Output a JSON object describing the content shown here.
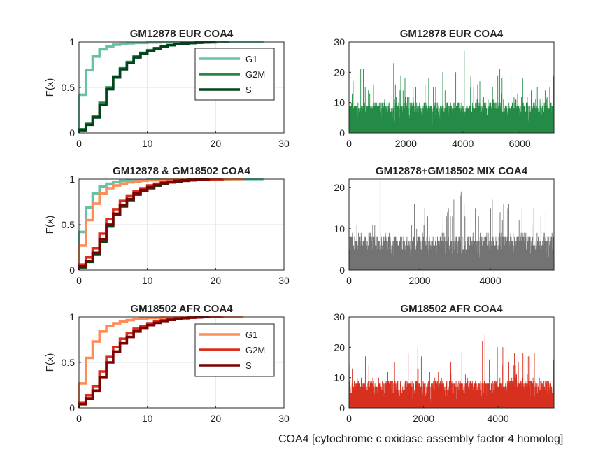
{
  "window": {
    "title": ""
  },
  "xlabel_bottom": "COA4 [cytochrome c oxidase assembly factor 4 homolog]",
  "chart_data": [
    {
      "id": "cdf-eur",
      "type": "line",
      "title": "GM12878 EUR COA4",
      "ylabel": "F(x)",
      "xlim": [
        0,
        30
      ],
      "ylim": [
        0,
        1
      ],
      "xticks": [
        0,
        10,
        20,
        30
      ],
      "yticks": [
        0,
        0.5,
        1
      ],
      "grid": true,
      "legend": {
        "position": "top-right",
        "entries": [
          "G1",
          "G2M",
          "S"
        ]
      },
      "series": [
        {
          "name": "G1",
          "color": "#66c2a4",
          "x": [
            0,
            1,
            2,
            3,
            4,
            5,
            6,
            7,
            8,
            10,
            12,
            15,
            27
          ],
          "y": [
            0.42,
            0.69,
            0.84,
            0.92,
            0.95,
            0.97,
            0.98,
            0.985,
            0.99,
            0.995,
            0.998,
            1.0,
            1.0
          ]
        },
        {
          "name": "G2M",
          "color": "#238b45",
          "x": [
            0,
            1,
            2,
            3,
            4,
            5,
            6,
            7,
            8,
            9,
            10,
            11,
            12,
            13,
            14,
            15,
            16,
            17,
            18,
            20,
            22
          ],
          "y": [
            0.04,
            0.1,
            0.18,
            0.33,
            0.5,
            0.62,
            0.71,
            0.78,
            0.84,
            0.88,
            0.91,
            0.93,
            0.95,
            0.965,
            0.975,
            0.982,
            0.988,
            0.992,
            0.996,
            1.0,
            1.0
          ]
        },
        {
          "name": "S",
          "color": "#00441b",
          "x": [
            0,
            1,
            2,
            3,
            4,
            5,
            6,
            7,
            8,
            9,
            10,
            11,
            12,
            13,
            14,
            15,
            16,
            17,
            18,
            19,
            20
          ],
          "y": [
            0.03,
            0.09,
            0.17,
            0.31,
            0.48,
            0.61,
            0.7,
            0.77,
            0.83,
            0.87,
            0.9,
            0.93,
            0.95,
            0.965,
            0.975,
            0.982,
            0.988,
            0.993,
            0.996,
            1.0,
            1.0
          ]
        }
      ]
    },
    {
      "id": "hist-eur",
      "type": "bar",
      "title": "GM12878 EUR COA4",
      "xlim": [
        0,
        7200
      ],
      "ylim": [
        0,
        30
      ],
      "xticks": [
        0,
        2000,
        4000,
        6000
      ],
      "yticks": [
        0,
        10,
        20,
        30
      ],
      "color": "#238b45",
      "n": 7200,
      "typical_max": 10,
      "peak_max": 27,
      "peak_at": 4050
    },
    {
      "id": "cdf-mix",
      "type": "line",
      "title": "GM12878 & GM18502 COA4",
      "ylabel": "F(x)",
      "xlim": [
        0,
        30
      ],
      "ylim": [
        0,
        1
      ],
      "xticks": [
        0,
        10,
        20,
        30
      ],
      "yticks": [
        0,
        0.5,
        1
      ],
      "grid": true,
      "series": [
        {
          "color": "#66c2a4",
          "x": [
            0,
            1,
            2,
            3,
            4,
            5,
            6,
            7,
            8,
            10,
            12,
            15,
            27
          ],
          "y": [
            0.42,
            0.69,
            0.84,
            0.92,
            0.95,
            0.97,
            0.98,
            0.985,
            0.99,
            0.995,
            0.998,
            1.0,
            1.0
          ]
        },
        {
          "color": "#238b45",
          "x": [
            0,
            1,
            2,
            3,
            4,
            5,
            6,
            7,
            8,
            9,
            10,
            11,
            12,
            13,
            14,
            15,
            16,
            17,
            18,
            20,
            22
          ],
          "y": [
            0.04,
            0.1,
            0.18,
            0.33,
            0.5,
            0.62,
            0.71,
            0.78,
            0.84,
            0.88,
            0.91,
            0.93,
            0.95,
            0.965,
            0.975,
            0.982,
            0.988,
            0.992,
            0.996,
            1.0,
            1.0
          ]
        },
        {
          "color": "#00441b",
          "x": [
            0,
            1,
            2,
            3,
            4,
            5,
            6,
            7,
            8,
            9,
            10,
            11,
            12,
            13,
            14,
            15,
            16,
            17,
            18,
            19,
            20
          ],
          "y": [
            0.03,
            0.09,
            0.17,
            0.31,
            0.48,
            0.61,
            0.7,
            0.77,
            0.83,
            0.87,
            0.9,
            0.93,
            0.95,
            0.965,
            0.975,
            0.982,
            0.988,
            0.993,
            0.996,
            1.0,
            1.0
          ]
        },
        {
          "color": "#fc8d59",
          "x": [
            0,
            1,
            2,
            3,
            4,
            5,
            6,
            7,
            8,
            9,
            10,
            12,
            14,
            16,
            18,
            20,
            24
          ],
          "y": [
            0.27,
            0.55,
            0.73,
            0.84,
            0.9,
            0.93,
            0.95,
            0.965,
            0.975,
            0.982,
            0.988,
            0.993,
            0.996,
            0.998,
            0.999,
            1.0,
            1.0
          ]
        },
        {
          "color": "#d7301f",
          "x": [
            0,
            1,
            2,
            3,
            4,
            5,
            6,
            7,
            8,
            9,
            10,
            11,
            12,
            13,
            14,
            15,
            16,
            18,
            21
          ],
          "y": [
            0.06,
            0.14,
            0.24,
            0.4,
            0.56,
            0.67,
            0.76,
            0.82,
            0.87,
            0.9,
            0.93,
            0.95,
            0.965,
            0.975,
            0.984,
            0.99,
            0.995,
            0.998,
            1.0
          ]
        },
        {
          "color": "#7f0000",
          "x": [
            0,
            1,
            2,
            3,
            4,
            5,
            6,
            7,
            8,
            9,
            10,
            11,
            12,
            13,
            14,
            15,
            16,
            17,
            18,
            19
          ],
          "y": [
            0.04,
            0.1,
            0.19,
            0.34,
            0.5,
            0.62,
            0.71,
            0.78,
            0.84,
            0.88,
            0.91,
            0.935,
            0.955,
            0.968,
            0.978,
            0.986,
            0.992,
            0.996,
            0.999,
            1.0
          ]
        }
      ]
    },
    {
      "id": "hist-mix",
      "type": "bar",
      "title": "GM12878+GM18502 MIX COA4",
      "xlim": [
        0,
        5800
      ],
      "ylim": [
        0,
        22
      ],
      "xticks": [
        0,
        2000,
        4000
      ],
      "yticks": [
        0,
        10,
        20
      ],
      "color": "#737373",
      "n": 5800,
      "typical_max": 8,
      "peak_max": 22,
      "peak_at": 880
    },
    {
      "id": "cdf-afr",
      "type": "line",
      "title": "GM18502 AFR COA4",
      "ylabel": "F(x)",
      "xlim": [
        0,
        30
      ],
      "ylim": [
        0,
        1
      ],
      "xticks": [
        0,
        10,
        20,
        30
      ],
      "yticks": [
        0,
        0.5,
        1
      ],
      "grid": true,
      "legend": {
        "position": "top-right",
        "entries": [
          "G1",
          "G2M",
          "S"
        ]
      },
      "series": [
        {
          "name": "G1",
          "color": "#fc8d59",
          "x": [
            0,
            1,
            2,
            3,
            4,
            5,
            6,
            7,
            8,
            9,
            10,
            12,
            14,
            16,
            18,
            20,
            24
          ],
          "y": [
            0.27,
            0.55,
            0.73,
            0.84,
            0.9,
            0.93,
            0.95,
            0.965,
            0.975,
            0.982,
            0.988,
            0.993,
            0.996,
            0.998,
            0.999,
            1.0,
            1.0
          ]
        },
        {
          "name": "G2M",
          "color": "#d7301f",
          "x": [
            0,
            1,
            2,
            3,
            4,
            5,
            6,
            7,
            8,
            9,
            10,
            11,
            12,
            13,
            14,
            15,
            16,
            18,
            21
          ],
          "y": [
            0.06,
            0.14,
            0.24,
            0.4,
            0.56,
            0.67,
            0.76,
            0.82,
            0.87,
            0.9,
            0.93,
            0.95,
            0.965,
            0.975,
            0.984,
            0.99,
            0.995,
            0.998,
            1.0
          ]
        },
        {
          "name": "S",
          "color": "#7f0000",
          "x": [
            0,
            1,
            2,
            3,
            4,
            5,
            6,
            7,
            8,
            9,
            10,
            11,
            12,
            13,
            14,
            15,
            16,
            17,
            18,
            19
          ],
          "y": [
            0.04,
            0.1,
            0.19,
            0.34,
            0.5,
            0.62,
            0.71,
            0.78,
            0.84,
            0.88,
            0.91,
            0.935,
            0.955,
            0.968,
            0.978,
            0.986,
            0.992,
            0.996,
            0.999,
            1.0
          ]
        }
      ]
    },
    {
      "id": "hist-afr",
      "type": "bar",
      "title": "GM18502 AFR COA4",
      "xlim": [
        0,
        5500
      ],
      "ylim": [
        0,
        30
      ],
      "xticks": [
        0,
        2000,
        4000
      ],
      "yticks": [
        0,
        10,
        20,
        30
      ],
      "color": "#d7301f",
      "n": 5500,
      "typical_max": 9,
      "peak_max": 24,
      "peak_at": 3650
    }
  ]
}
